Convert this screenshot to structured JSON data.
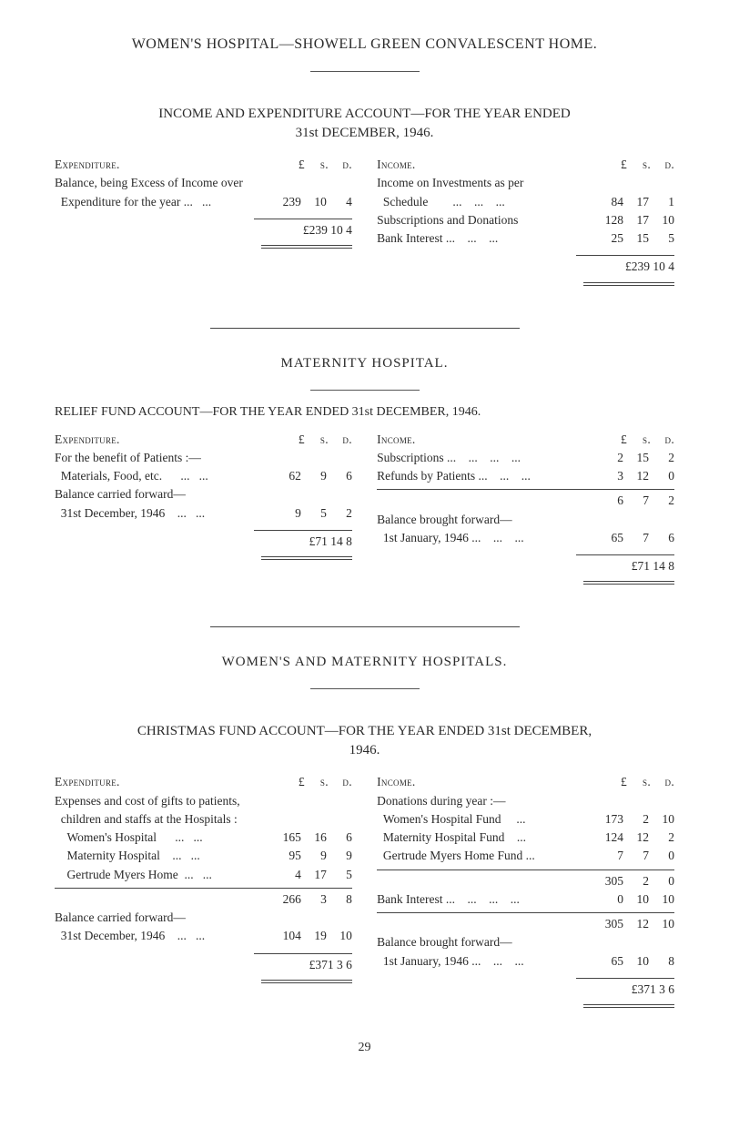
{
  "colors": {
    "text": "#2a2a2a",
    "bg": "#ffffff",
    "rule": "#444444"
  },
  "typography": {
    "family": "Times New Roman",
    "title_size_pt": 12,
    "body_size_pt": 10
  },
  "main_title": "WOMEN'S HOSPITAL—SHOWELL GREEN CONVALESCENT HOME.",
  "acct1": {
    "heading1": "INCOME AND EXPENDITURE ACCOUNT—FOR THE YEAR ENDED",
    "heading2": "31st DECEMBER, 1946.",
    "left": {
      "header_label": "Expenditure.",
      "amt_head": [
        "£",
        "s.",
        "d."
      ],
      "lines": [
        {
          "label": "Balance, being Excess of Income over",
          "amounts": [
            "",
            "",
            ""
          ]
        },
        {
          "label": "  Expenditure for the year ...   ...",
          "amounts": [
            "239",
            "10",
            "4"
          ]
        }
      ],
      "total": "£239 10  4"
    },
    "right": {
      "header_label": "Income.",
      "amt_head": [
        "£",
        "s.",
        "d."
      ],
      "lines": [
        {
          "label": "Income on Investments as per",
          "amounts": [
            "",
            "",
            ""
          ]
        },
        {
          "label": "  Schedule        ...    ...    ...",
          "amounts": [
            "84",
            "17",
            "1"
          ]
        },
        {
          "label": "Subscriptions and Donations",
          "amounts": [
            "128",
            "17",
            "10"
          ]
        },
        {
          "label": "Bank Interest ...    ...    ...",
          "amounts": [
            "25",
            "15",
            "5"
          ]
        }
      ],
      "total": "£239 10  4"
    }
  },
  "maternity_heading": "MATERNITY HOSPITAL.",
  "acct2": {
    "heading": "RELIEF FUND ACCOUNT—FOR THE YEAR ENDED 31st DECEMBER, 1946.",
    "left": {
      "header_label": "Expenditure.",
      "amt_head": [
        "£",
        "s.",
        "d."
      ],
      "lines": [
        {
          "label": "For the benefit of Patients :—",
          "amounts": [
            "",
            "",
            ""
          ]
        },
        {
          "label": "  Materials, Food, etc.      ...   ...",
          "amounts": [
            "62",
            "9",
            "6"
          ]
        },
        {
          "label": "Balance carried forward—",
          "amounts": [
            "",
            "",
            ""
          ]
        },
        {
          "label": "  31st December, 1946    ...   ...",
          "amounts": [
            "9",
            "5",
            "2"
          ]
        }
      ],
      "total": "£71 14  8"
    },
    "right": {
      "header_label": "Income.",
      "amt_head": [
        "£",
        "s.",
        "d."
      ],
      "lines": [
        {
          "label": "Subscriptions ...    ...    ...    ...",
          "amounts": [
            "2",
            "15",
            "2"
          ]
        },
        {
          "label": "Refunds by Patients ...    ...    ...",
          "amounts": [
            "3",
            "12",
            "0"
          ]
        }
      ],
      "subtotal": [
        "6",
        "7",
        "2"
      ],
      "lines2": [
        {
          "label": "Balance brought forward—",
          "amounts": [
            "",
            "",
            ""
          ]
        },
        {
          "label": "  1st January, 1946 ...    ...    ...",
          "amounts": [
            "65",
            "7",
            "6"
          ]
        }
      ],
      "total": "£71 14  8"
    }
  },
  "combined_heading": "WOMEN'S AND MATERNITY HOSPITALS.",
  "acct3": {
    "heading1": "CHRISTMAS FUND ACCOUNT—FOR THE YEAR ENDED 31st DECEMBER,",
    "heading2": "1946.",
    "left": {
      "header_label": "Expenditure.",
      "amt_head": [
        "£",
        "s.",
        "d."
      ],
      "lines": [
        {
          "label": "Expenses and cost of gifts to patients,",
          "amounts": [
            "",
            "",
            ""
          ]
        },
        {
          "label": "  children and staffs at the Hospitals :",
          "amounts": [
            "",
            "",
            ""
          ]
        },
        {
          "label": "    Women's Hospital      ...   ...",
          "amounts": [
            "165",
            "16",
            "6"
          ]
        },
        {
          "label": "    Maternity Hospital    ...   ...",
          "amounts": [
            "95",
            "9",
            "9"
          ]
        },
        {
          "label": "    Gertrude Myers Home  ...   ...",
          "amounts": [
            "4",
            "17",
            "5"
          ]
        }
      ],
      "subtotal": [
        "266",
        "3",
        "8"
      ],
      "lines2": [
        {
          "label": "Balance carried forward—",
          "amounts": [
            "",
            "",
            ""
          ]
        },
        {
          "label": "  31st December, 1946    ...   ...",
          "amounts": [
            "104",
            "19",
            "10"
          ]
        }
      ],
      "total": "£371  3  6"
    },
    "right": {
      "header_label": "Income.",
      "amt_head": [
        "£",
        "s.",
        "d."
      ],
      "lines": [
        {
          "label": "Donations during year :—",
          "amounts": [
            "",
            "",
            ""
          ]
        },
        {
          "label": "  Women's Hospital Fund     ...",
          "amounts": [
            "173",
            "2",
            "10"
          ]
        },
        {
          "label": "  Maternity Hospital Fund    ...",
          "amounts": [
            "124",
            "12",
            "2"
          ]
        },
        {
          "label": "  Gertrude Myers Home Fund ...",
          "amounts": [
            "7",
            "7",
            "0"
          ]
        }
      ],
      "subtotal": [
        "305",
        "2",
        "0"
      ],
      "lines_mid": [
        {
          "label": "Bank Interest ...    ...    ...    ...",
          "amounts": [
            "0",
            "10",
            "10"
          ]
        }
      ],
      "subtotal2": [
        "305",
        "12",
        "10"
      ],
      "lines2": [
        {
          "label": "Balance brought forward—",
          "amounts": [
            "",
            "",
            ""
          ]
        },
        {
          "label": "  1st January, 1946 ...    ...    ...",
          "amounts": [
            "65",
            "10",
            "8"
          ]
        }
      ],
      "total": "£371  3  6"
    }
  },
  "page_number": "29"
}
